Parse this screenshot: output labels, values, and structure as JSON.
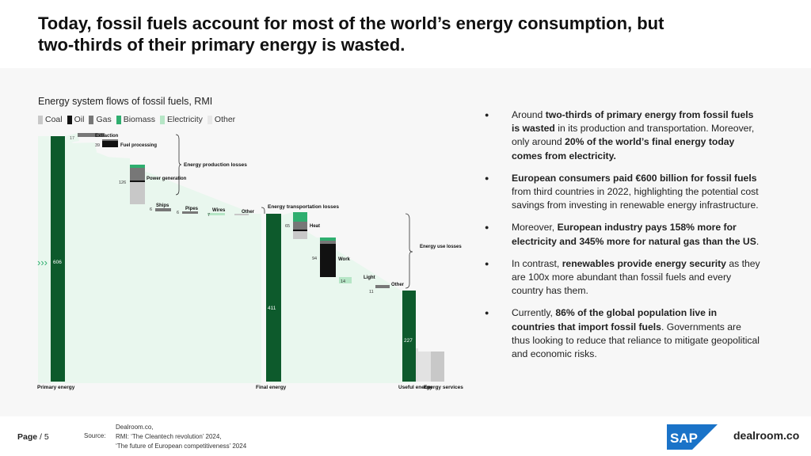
{
  "title": {
    "line1": "Today, fossil fuels account for most of the world’s energy consumption, but",
    "line2": "two-thirds of their primary energy is wasted."
  },
  "chart_title": "Energy system flows of fossil fuels, RMI",
  "legend": [
    {
      "label": "Coal",
      "color": "#c8c8c8"
    },
    {
      "label": "Oil",
      "color": "#111111"
    },
    {
      "label": "Gas",
      "color": "#777777"
    },
    {
      "label": "Biomass",
      "color": "#2fae6f"
    },
    {
      "label": "Electricity",
      "color": "#b6e6c6"
    },
    {
      "label": "Other",
      "color": "#e8e8e8"
    }
  ],
  "colors": {
    "dark_green": "#0d5a2c",
    "flow_fill": "#e9f7ee",
    "oil": "#111111",
    "gas": "#777777",
    "coal": "#c8c8c8",
    "biomass": "#2fae6f",
    "electricity": "#b6e6c6",
    "other": "#e8e8e8",
    "panel_bg": "#f7f7f7"
  },
  "chart_data": {
    "type": "sankey",
    "title": "Energy system flows of fossil fuels, RMI",
    "nodes": [
      {
        "label": "Primary energy",
        "value": 606
      },
      {
        "label": "Final energy",
        "value": 411
      },
      {
        "label": "Useful energy",
        "value": 227
      },
      {
        "label": "Energy services",
        "value": null
      }
    ],
    "production_losses": {
      "group_label": "Energy production losses",
      "items": [
        {
          "label": "Extraction",
          "value": 17
        },
        {
          "label": "Fuel processing",
          "value": 39
        },
        {
          "label": "Power generation",
          "value": 126
        },
        {
          "label": "Ships",
          "value": 6
        },
        {
          "label": "Pipes",
          "value": 6
        },
        {
          "label": "Wires",
          "value": 7
        },
        {
          "label": "Other",
          "value": null
        }
      ]
    },
    "transportation_losses_label": "Energy transportation losses",
    "use_losses": {
      "group_label": "Energy use losses",
      "items": [
        {
          "label": "Heat",
          "value": 65
        },
        {
          "label": "Work",
          "value": 94
        },
        {
          "label": "Light",
          "value": 14
        },
        {
          "label": "Other",
          "value": 11
        }
      ]
    }
  },
  "chart_text": {
    "primary_label": "Primary energy",
    "final_label": "Final energy",
    "useful_label": "Useful energy",
    "services_label": "Energy services",
    "production_group": "Energy production losses",
    "transport_group": "Energy transportation losses",
    "use_group": "Energy use losses",
    "extraction": "Extraction",
    "fuel_processing": "Fuel processing",
    "power_generation": "Power generation",
    "ships": "Ships",
    "pipes": "Pipes",
    "wires": "Wires",
    "other_prod": "Other",
    "heat": "Heat",
    "work": "Work",
    "light": "Light",
    "other_use": "Other",
    "v_primary": "606",
    "v_final": "411",
    "v_useful": "227",
    "v_extraction": "17",
    "v_fuel": "39",
    "v_power": "126",
    "v_ships": "6",
    "v_pipes": "6",
    "v_wires": "7",
    "v_heat": "65",
    "v_work": "94",
    "v_light": "14",
    "v_other_use": "11"
  },
  "bullets": [
    {
      "parts": [
        {
          "t": "Around ",
          "b": false
        },
        {
          "t": "two-thirds of primary energy from fossil fuels is wasted",
          "b": true
        },
        {
          "t": " in its production and transportation. Moreover, only around ",
          "b": false
        },
        {
          "t": "20% of the world’s final energy today comes from electricity.",
          "b": true
        }
      ]
    },
    {
      "parts": [
        {
          "t": "European consumers paid €600 billion for fossil fuels",
          "b": true
        },
        {
          "t": " from third countries in 2022, highlighting the potential cost savings from investing in renewable energy infrastructure.",
          "b": false
        }
      ]
    },
    {
      "parts": [
        {
          "t": "Moreover, ",
          "b": false
        },
        {
          "t": "European industry pays 158% more for electricity and 345% more for natural gas than the US",
          "b": true
        },
        {
          "t": ".",
          "b": false
        }
      ]
    },
    {
      "parts": [
        {
          "t": "In contrast, ",
          "b": false
        },
        {
          "t": "renewables provide energy security",
          "b": true
        },
        {
          "t": " as they are 100x more abundant than fossil fuels and every country has them.",
          "b": false
        }
      ]
    },
    {
      "parts": [
        {
          "t": "Currently, ",
          "b": false
        },
        {
          "t": "86% of the global population live in countries that import fossil fuels",
          "b": true
        },
        {
          "t": ". Governments are thus looking to reduce that reliance to mitigate geopolitical and economic risks.",
          "b": false
        }
      ]
    }
  ],
  "footer": {
    "page_label": "Page",
    "page_sep": " / ",
    "page_number": "5",
    "source_label": "Source:",
    "source_lines": [
      "Dealroom.co,",
      "RMI: ‘The Cleantech revolution’ 2024,",
      "‘The future of European competitiveness’ 2024"
    ],
    "sap_logo_text": "SAP",
    "dealroom_logo_text": "dealroom.co"
  }
}
